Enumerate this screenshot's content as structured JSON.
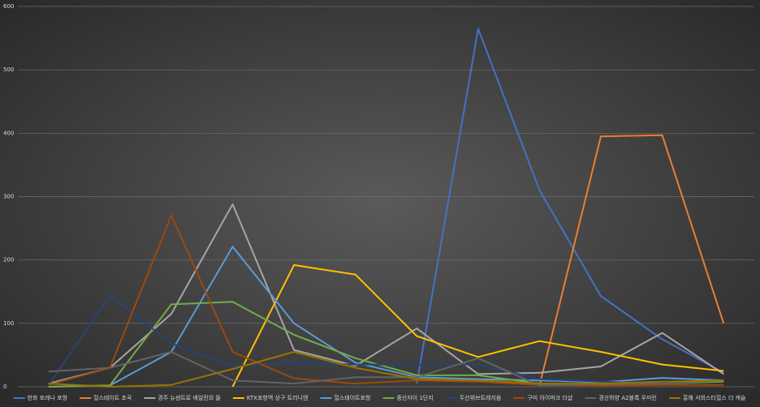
{
  "chart_data": {
    "type": "line",
    "categories": [
      null,
      null,
      null,
      null,
      null,
      null,
      null,
      null,
      null,
      null,
      null,
      null
    ],
    "ylim": [
      0,
      600
    ],
    "yticks": [
      0,
      100,
      200,
      300,
      400,
      500,
      600
    ],
    "grid": true,
    "legend": "bottom",
    "series": [
      {
        "name": "한화 포레나 포항",
        "color": "#4472c4",
        "values": [
          null,
          null,
          null,
          null,
          null,
          null,
          5,
          565,
          310,
          143,
          75,
          22
        ]
      },
      {
        "name": "힐스테이트 초곡",
        "color": "#ed7d31",
        "values": [
          null,
          null,
          null,
          null,
          null,
          null,
          null,
          null,
          2,
          395,
          397,
          100
        ]
      },
      {
        "name": "경주 뉴센트로 에일린의 뜰",
        "color": "#a5a5a5",
        "values": [
          5,
          30,
          115,
          288,
          58,
          33,
          92,
          20,
          22,
          32,
          85,
          20
        ]
      },
      {
        "name": "KTX포항역 상구 트리니엔",
        "color": "#ffc000",
        "values": [
          null,
          null,
          null,
          0,
          192,
          177,
          80,
          47,
          72,
          55,
          35,
          25
        ]
      },
      {
        "name": "힐스테이트포항",
        "color": "#5b9bd5",
        "values": [
          0,
          2,
          55,
          221,
          100,
          38,
          15,
          12,
          10,
          7,
          14,
          10
        ]
      },
      {
        "name": "중산자이 1단지",
        "color": "#70ad47",
        "values": [
          0,
          2,
          130,
          134,
          82,
          45,
          18,
          18,
          5,
          3,
          5,
          8
        ]
      },
      {
        "name": "두산위브트레지움",
        "color": "#264478",
        "values": [
          2,
          145,
          68,
          33,
          38,
          35,
          35,
          35,
          12,
          8,
          5,
          10
        ]
      },
      {
        "name": "구미 아이파크 더샵",
        "color": "#9e480e",
        "values": [
          3,
          30,
          270,
          55,
          13,
          5,
          10,
          8,
          3,
          2,
          3,
          3
        ]
      },
      {
        "name": "경산하양 A2블록 우미린",
        "color": "#636363",
        "values": [
          24,
          30,
          55,
          10,
          5,
          15,
          15,
          45,
          2,
          5,
          5,
          10
        ]
      },
      {
        "name": "흥해 서희스타힐스 더 캐슬",
        "color": "#997300",
        "values": [
          5,
          0,
          3,
          28,
          55,
          30,
          12,
          10,
          5,
          5,
          8,
          10
        ]
      }
    ]
  }
}
